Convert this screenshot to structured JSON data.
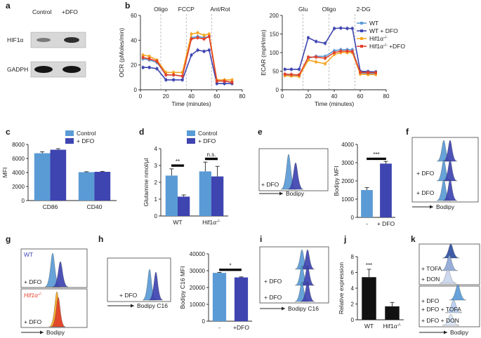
{
  "colors": {
    "light_blue": "#5b9bd5",
    "dark_blue": "#3e44b0",
    "orange": "#f5a623",
    "red": "#e2402a",
    "black": "#111111",
    "pale_blue": "#aac8ea"
  },
  "panel_labels": [
    "a",
    "b",
    "c",
    "d",
    "e",
    "f",
    "g",
    "h",
    "i",
    "j",
    "k"
  ],
  "panel_a": {
    "columns": [
      "Control",
      "+DFO"
    ],
    "rows": [
      "HIF1α",
      "GADPH"
    ]
  },
  "chart_data": [
    {
      "id": "b_ocr",
      "type": "line",
      "ylabel": "OCR (pMoles/min)",
      "xlabel": "Time (minutes)",
      "xlim": [
        0,
        80
      ],
      "ylim": [
        0,
        60
      ],
      "xticks": [
        0,
        20,
        40,
        60,
        80
      ],
      "yticks": [
        0,
        20,
        40,
        60
      ],
      "annotations": [
        "Oligo",
        "FCCP",
        "Ant/Rot"
      ],
      "annotation_x": [
        16,
        36,
        56
      ],
      "x": [
        2,
        7,
        13,
        20,
        26,
        33,
        40,
        45,
        50,
        54,
        60,
        66,
        72
      ],
      "series": [
        {
          "name": "WT",
          "color": "light_blue",
          "values": [
            25,
            24,
            22,
            12,
            12,
            11,
            42,
            43,
            42,
            43,
            7,
            7,
            6
          ]
        },
        {
          "name": "WT + DFO",
          "color": "dark_blue",
          "values": [
            18,
            18,
            17,
            8,
            8,
            8,
            28,
            32,
            31,
            32,
            5,
            5,
            5
          ]
        },
        {
          "name": "Hif1α-/-",
          "color": "orange",
          "values": [
            28,
            27,
            24,
            14,
            14,
            14,
            45,
            46,
            44,
            45,
            8,
            8,
            8
          ]
        },
        {
          "name": "Hif1α-/- +DFO",
          "color": "red",
          "values": [
            26,
            25,
            23,
            12,
            12,
            11,
            41,
            42,
            41,
            43,
            7,
            7,
            6
          ]
        }
      ]
    },
    {
      "id": "b_ecar",
      "type": "line",
      "ylabel": "ECAR (mpH/min)",
      "xlabel": "Time (minutes)",
      "xlim": [
        0,
        80
      ],
      "ylim": [
        0,
        200
      ],
      "xticks": [
        0,
        20,
        40,
        60,
        80
      ],
      "yticks": [
        0,
        50,
        100,
        150,
        200
      ],
      "annotations": [
        "Glu",
        "Oligo",
        "2-DG"
      ],
      "annotation_x": [
        16,
        36,
        56
      ],
      "x": [
        2,
        7,
        13,
        20,
        26,
        33,
        40,
        45,
        50,
        54,
        60,
        66,
        72
      ],
      "series": [
        {
          "name": "WT",
          "color": "light_blue",
          "values": [
            40,
            40,
            39,
            85,
            90,
            90,
            105,
            108,
            108,
            108,
            45,
            44,
            44
          ]
        },
        {
          "name": "WT + DFO",
          "color": "dark_blue",
          "values": [
            55,
            55,
            55,
            140,
            130,
            125,
            165,
            166,
            165,
            165,
            50,
            49,
            48
          ]
        },
        {
          "name": "Hif1α-/-",
          "color": "orange",
          "values": [
            38,
            37,
            36,
            80,
            75,
            70,
            95,
            100,
            100,
            100,
            42,
            41,
            41
          ]
        },
        {
          "name": "Hif1α-/- +DFO",
          "color": "red",
          "values": [
            42,
            41,
            40,
            88,
            88,
            85,
            100,
            104,
            104,
            103,
            47,
            46,
            46
          ]
        }
      ]
    },
    {
      "id": "c",
      "type": "bar",
      "ylabel": "MFI",
      "categories": [
        "CD86",
        "CD40"
      ],
      "ylim": [
        0,
        8000
      ],
      "yticks": [
        0,
        2000,
        4000,
        6000,
        8000
      ],
      "series": [
        {
          "name": "Control",
          "color": "light_blue",
          "values": [
            6750,
            4050
          ],
          "errors": [
            200,
            60
          ]
        },
        {
          "name": "+ DFO",
          "color": "dark_blue",
          "values": [
            7250,
            4100
          ],
          "errors": [
            150,
            60
          ]
        }
      ]
    },
    {
      "id": "d",
      "type": "bar",
      "ylabel": "Glutamine nmol/µl",
      "categories": [
        "WT",
        "Hif1α-/-"
      ],
      "ylim": [
        0,
        4
      ],
      "yticks": [
        0,
        1,
        2,
        3,
        4
      ],
      "series": [
        {
          "name": "Control",
          "color": "light_blue",
          "values": [
            2.4,
            2.65
          ],
          "errors": [
            0.4,
            0.55
          ]
        },
        {
          "name": "+ DFO",
          "color": "dark_blue",
          "values": [
            1.15,
            2.35
          ],
          "errors": [
            0.1,
            0.6
          ]
        }
      ],
      "significance": [
        "**",
        "n.s."
      ]
    },
    {
      "id": "e",
      "type": "bar",
      "ylabel": "Bodipy MFI",
      "categories": [
        "-",
        "+ DFO"
      ],
      "ylim": [
        0,
        4000
      ],
      "yticks": [
        0,
        1000,
        2000,
        3000,
        4000
      ],
      "values": [
        1500,
        2950
      ],
      "errors": [
        130,
        120
      ],
      "colors": [
        "light_blue",
        "dark_blue"
      ],
      "significance": "***"
    },
    {
      "id": "h",
      "type": "bar",
      "ylabel": "Bodipy C16 MFI",
      "categories": [
        "-",
        "+DFO"
      ],
      "ylim": [
        0,
        40000
      ],
      "yticks": [
        0,
        10000,
        20000,
        30000,
        40000
      ],
      "values": [
        28700,
        26000
      ],
      "errors": [
        300,
        300
      ],
      "colors": [
        "light_blue",
        "dark_blue"
      ],
      "significance": "*"
    },
    {
      "id": "j",
      "type": "bar",
      "ylabel": "Relative expression",
      "categories": [
        "WT",
        "Hif1α-/-"
      ],
      "ylim": [
        0,
        8
      ],
      "yticks": [
        0,
        2,
        4,
        6,
        8
      ],
      "values": [
        5.4,
        1.7
      ],
      "errors": [
        1.0,
        0.5
      ],
      "colors": [
        "black",
        "black"
      ],
      "significance": "***"
    }
  ],
  "histograms": {
    "e": {
      "labels": [
        "+ DFO"
      ],
      "axis": "Bodipy"
    },
    "f": {
      "labels": [
        "+ DFO",
        "+ DFO"
      ],
      "axis": "Bodipy"
    },
    "g": {
      "labels_top": [
        "WT",
        "+ DFO"
      ],
      "labels_bottom": [
        "Hif1α-/-",
        "+ DFO"
      ],
      "axis": "Bodipy"
    },
    "h": {
      "labels": [
        "+ DFO"
      ],
      "axis": "Bodipy C16"
    },
    "i": {
      "labels": [
        "+ DFO",
        "+ DFO"
      ],
      "axis": "Bodipy C16"
    },
    "k": {
      "labels_top": [
        "+ TOFA",
        "+ DON"
      ],
      "labels_bottom": [
        "+ DFO",
        "+ DFO + TOFA",
        "+ DFO + DON"
      ],
      "axis": "Bodipy"
    }
  }
}
